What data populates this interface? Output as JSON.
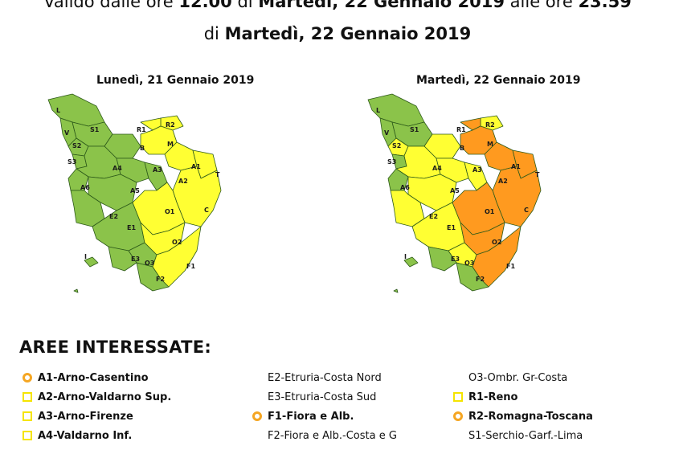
{
  "header": {
    "line1_prefix": "Valido dalle ore ",
    "line1_time1": "12.00",
    "line1_mid": " di ",
    "line1_day1": "Martedì, 22 Gennaio 2019",
    "line1_mid2": " alle ore ",
    "line1_time2": "23.59",
    "line2_prefix": "di ",
    "line2_day": "Martedì, 22 Gennaio 2019"
  },
  "maps": [
    {
      "date_label": "Lunedì, 21 Gennaio 2019"
    },
    {
      "date_label": "Martedì, 22 Gennaio 2019"
    }
  ],
  "colors": {
    "green": "#8bc34a",
    "yellow": "#ffff33",
    "orange": "#ff9a1f",
    "border": "#2d5a1a"
  },
  "zone_labels": {
    "L": "L",
    "V": "V",
    "S1": "S1",
    "S2": "S2",
    "S3": "S3",
    "R1": "R1",
    "R2": "R2",
    "M": "M",
    "B": "B",
    "A1": "A1",
    "T": "T",
    "A3": "A3",
    "A2": "A2",
    "A4": "A4",
    "A5": "A5",
    "A6": "A6",
    "C": "C",
    "O1": "O1",
    "O2": "O2",
    "E2": "E2",
    "E1": "E1",
    "E3": "E3",
    "O3": "O3",
    "F1": "F1",
    "F2": "F2",
    "I": "I"
  },
  "legend": {
    "title": "AREE INTERESSATE:",
    "col1": [
      {
        "label": "A1-Arno-Casentino",
        "marker": "circle",
        "bold": true
      },
      {
        "label": "A2-Arno-Valdarno Sup.",
        "marker": "square",
        "bold": true
      },
      {
        "label": "A3-Arno-Firenze",
        "marker": "square",
        "bold": true
      },
      {
        "label": "A4-Valdarno Inf.",
        "marker": "square",
        "bold": true
      }
    ],
    "col2": [
      {
        "label": "E2-Etruria-Costa Nord",
        "marker": "none",
        "bold": false
      },
      {
        "label": "E3-Etruria-Costa Sud",
        "marker": "none",
        "bold": false
      },
      {
        "label": "F1-Fiora e Alb.",
        "marker": "circle",
        "bold": true
      },
      {
        "label": "F2-Fiora e Alb.-Costa e G",
        "marker": "none",
        "bold": false
      }
    ],
    "col3": [
      {
        "label": "O3-Ombr. Gr-Costa",
        "marker": "none",
        "bold": false
      },
      {
        "label": "R1-Reno",
        "marker": "square",
        "bold": true
      },
      {
        "label": "R2-Romagna-Toscana",
        "marker": "circle",
        "bold": true
      },
      {
        "label": "S1-Serchio-Garf.-Lima",
        "marker": "none",
        "bold": false
      }
    ]
  }
}
